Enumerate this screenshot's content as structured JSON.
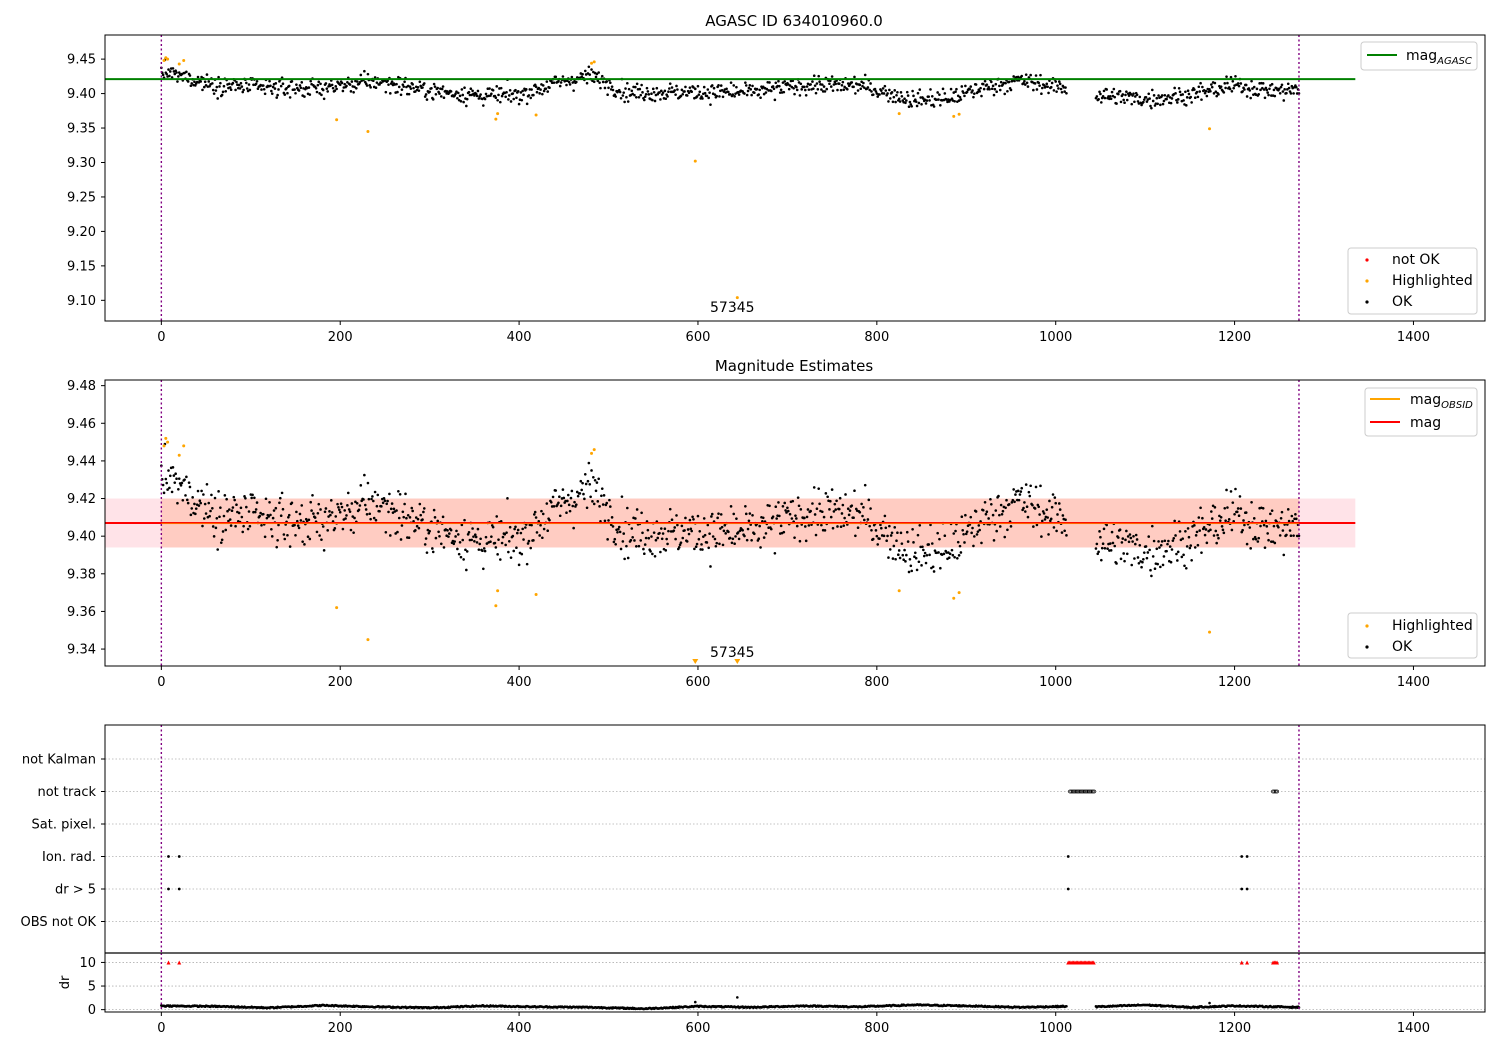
{
  "figure": {
    "title_top": "AGASC ID 634010960.0",
    "title_mid": "Magnitude Estimates",
    "obsid_annotation": "57345"
  },
  "colors": {
    "ok": "#000000",
    "highlighted": "#ffa500",
    "not_ok": "#ff0000",
    "agasc_line": "#008000",
    "mag_line": "#ff0000",
    "mag_obsid_line": "#ffa500",
    "band_fill": "#ffc0cb",
    "band_fill_obsid": "#ffa07a",
    "obs_boundary": "#800080",
    "flag_grid": "#b0b0b0"
  },
  "legends": {
    "top_line": {
      "base": "mag",
      "sub": "AGASC"
    },
    "top_points": [
      "not OK",
      "Highlighted",
      "OK"
    ],
    "mid_lines": [
      {
        "base": "mag",
        "sub": "OBSID"
      },
      {
        "base": "mag",
        "sub": ""
      }
    ],
    "mid_points": [
      "Highlighted",
      "OK"
    ]
  },
  "chart_data": [
    {
      "type": "scatter",
      "title": "AGASC ID 634010960.0",
      "xlim": [
        -63,
        1480
      ],
      "ylim": [
        9.07,
        9.485
      ],
      "x_ticks": [
        0,
        200,
        400,
        600,
        800,
        1000,
        1200,
        1400
      ],
      "y_ticks": [
        9.1,
        9.15,
        9.2,
        9.25,
        9.3,
        9.35,
        9.4,
        9.45
      ],
      "y_tick_labels": [
        "9.10",
        "9.15",
        "9.20",
        "9.25",
        "9.30",
        "9.35",
        "9.40",
        "9.45"
      ],
      "grid": false,
      "legend_location": [
        "upper right",
        "lower right"
      ],
      "mag_agasc": 9.421,
      "obs_boundaries": [
        0,
        1272
      ],
      "ok_cloud": {
        "x_range": [
          0,
          1272
        ],
        "gap": [
          1012,
          1045
        ],
        "envelope_x": [
          0,
          60,
          120,
          180,
          240,
          300,
          360,
          400,
          440,
          480,
          520,
          600,
          660,
          720,
          780,
          840,
          880,
          920,
          960,
          1000,
          1012,
          1045,
          1100,
          1150,
          1200,
          1240,
          1272
        ],
        "envelope_y": [
          9.432,
          9.413,
          9.408,
          9.408,
          9.418,
          9.404,
          9.397,
          9.398,
          9.415,
          9.426,
          9.402,
          9.402,
          9.402,
          9.412,
          9.412,
          9.391,
          9.393,
          9.409,
          9.419,
          9.41,
          9.408,
          9.398,
          9.392,
          9.398,
          9.412,
          9.404,
          9.405
        ],
        "scatter_sd": 0.0085
      },
      "highlighted": [
        {
          "x": 3,
          "y": 9.448
        },
        {
          "x": 5,
          "y": 9.452
        },
        {
          "x": 7,
          "y": 9.45
        },
        {
          "x": 20,
          "y": 9.443
        },
        {
          "x": 25,
          "y": 9.448
        },
        {
          "x": 196,
          "y": 9.362
        },
        {
          "x": 231,
          "y": 9.345
        },
        {
          "x": 374,
          "y": 9.363
        },
        {
          "x": 376,
          "y": 9.371
        },
        {
          "x": 419,
          "y": 9.369
        },
        {
          "x": 481,
          "y": 9.444
        },
        {
          "x": 484,
          "y": 9.446
        },
        {
          "x": 597,
          "y": 9.302
        },
        {
          "x": 644,
          "y": 9.104
        },
        {
          "x": 825,
          "y": 9.371
        },
        {
          "x": 886,
          "y": 9.367
        },
        {
          "x": 892,
          "y": 9.37
        },
        {
          "x": 1172,
          "y": 9.349
        }
      ],
      "annotation": {
        "text": "57345",
        "x": 635,
        "y": 9.09
      }
    },
    {
      "type": "scatter",
      "title": "Magnitude Estimates",
      "xlim": [
        -63,
        1480
      ],
      "ylim": [
        9.331,
        9.483
      ],
      "x_ticks": [
        0,
        200,
        400,
        600,
        800,
        1000,
        1200,
        1400
      ],
      "y_ticks": [
        9.34,
        9.36,
        9.38,
        9.4,
        9.42,
        9.44,
        9.46,
        9.48
      ],
      "y_tick_labels": [
        "9.34",
        "9.36",
        "9.38",
        "9.40",
        "9.42",
        "9.44",
        "9.46",
        "9.48"
      ],
      "grid": false,
      "legend_location": [
        "upper right",
        "lower right"
      ],
      "mag": 9.407,
      "mag_band": [
        9.394,
        9.42
      ],
      "mag_obsid": 9.407,
      "mag_obsid_band": [
        9.394,
        9.42
      ],
      "obsid_band_x": [
        0,
        1272
      ],
      "mag_band_x": [
        -63,
        1335
      ],
      "obs_boundaries": [
        0,
        1272
      ],
      "highlighted_same_as_top": true,
      "offscale_markers": [
        {
          "x": 597
        },
        {
          "x": 644
        }
      ],
      "annotation": {
        "text": "57345",
        "x": 635,
        "y": 9.335
      }
    },
    {
      "type": "scatter",
      "title": "",
      "xlim": [
        -63,
        1480
      ],
      "x_ticks": [
        0,
        200,
        400,
        600,
        800,
        1000,
        1200,
        1400
      ],
      "flag_categories": [
        "not Kalman",
        "not track",
        "Sat. pixel.",
        "Ion. rad.",
        "dr > 5",
        "OBS not OK"
      ],
      "flags": {
        "not Kalman": [],
        "not track": [
          [
            1016,
            1043
          ],
          [
            1243,
            1248
          ]
        ],
        "Sat. pixel.": [],
        "Ion. rad.": [
          [
            8,
            8
          ],
          [
            20,
            20
          ],
          [
            1014,
            1014
          ],
          [
            1208,
            1208
          ],
          [
            1214,
            1214
          ]
        ],
        "dr > 5": [
          [
            8,
            8
          ],
          [
            20,
            20
          ],
          [
            1014,
            1014
          ],
          [
            1208,
            1208
          ],
          [
            1214,
            1214
          ]
        ],
        "OBS not OK": []
      },
      "dr": {
        "ylabel": "dr",
        "ylim": [
          -0.5,
          12
        ],
        "y_ticks": [
          0,
          5,
          10
        ],
        "y_tick_labels": [
          "0",
          "5",
          "10"
        ],
        "grid": true,
        "baseline_x": [
          0,
          60,
          120,
          180,
          240,
          300,
          360,
          420,
          480,
          540,
          600,
          660,
          720,
          780,
          840,
          900,
          960,
          1012,
          1045,
          1100,
          1150,
          1200,
          1250,
          1272
        ],
        "baseline_y": [
          0.8,
          0.7,
          0.4,
          0.9,
          0.6,
          0.4,
          0.8,
          0.6,
          0.5,
          0.2,
          0.7,
          0.5,
          0.8,
          0.6,
          1.0,
          0.8,
          0.5,
          0.7,
          0.6,
          1.0,
          0.5,
          0.8,
          0.6,
          0.5
        ],
        "spikes": [
          {
            "x": 597,
            "y": 1.6
          },
          {
            "x": 644,
            "y": 2.6
          },
          {
            "x": 1172,
            "y": 1.4
          }
        ],
        "not_ok_value": 10,
        "not_ok_ranges": [
          [
            8,
            8
          ],
          [
            20,
            20
          ],
          [
            1014,
            1043
          ],
          [
            1208,
            1208
          ],
          [
            1214,
            1214
          ],
          [
            1243,
            1248
          ]
        ]
      },
      "obs_boundaries": [
        0,
        1272
      ]
    }
  ]
}
